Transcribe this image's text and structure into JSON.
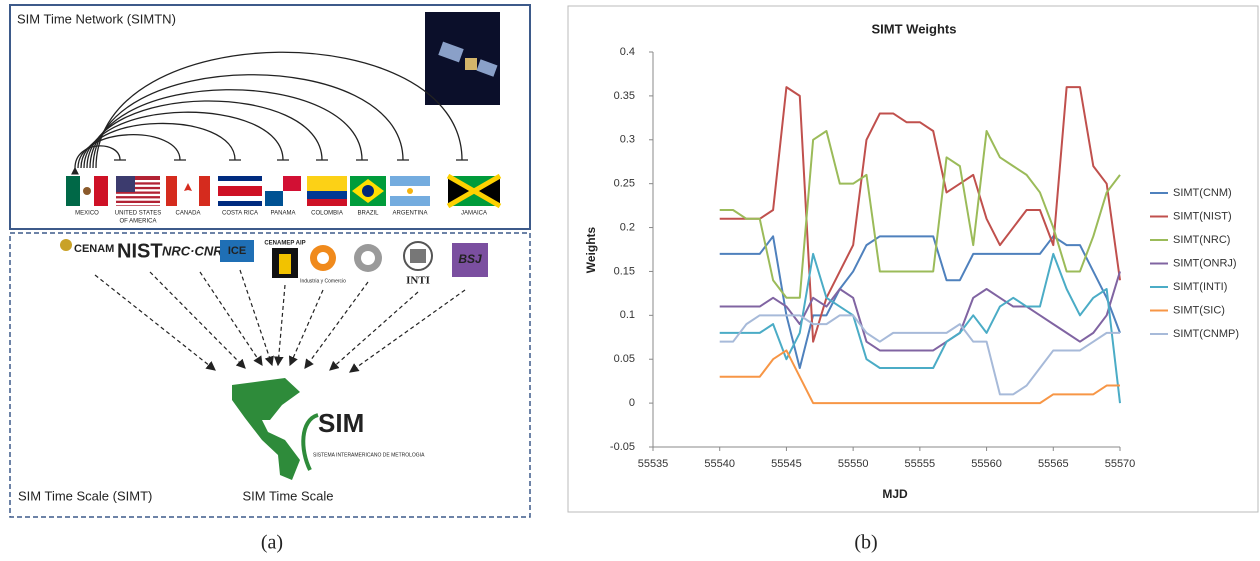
{
  "panel_a": {
    "title": "SIM Time Network (SIMTN)",
    "countries": [
      [
        "MEXICO"
      ],
      [
        "UNITED STATES",
        "OF AMERICA"
      ],
      [
        "CANADA"
      ],
      [
        "COSTA RICA"
      ],
      [
        "PANAMA"
      ],
      [
        "COLOMBIA"
      ],
      [
        "BRAZIL"
      ],
      [
        "ARGENTINA"
      ],
      [
        "JAMAICA"
      ]
    ],
    "institutes": [
      "CENAM",
      "NIST",
      "NRC·CNRC",
      "ICE",
      "CENAMEP AIP",
      "Industria y Comercio",
      "INTI",
      "BSJ"
    ],
    "sim_logo": {
      "name": "SIM",
      "subtitle": "SISTEMA INTERAMERICANO DE METROLOGIA"
    },
    "scale_label": "SIM Time Scale (SIMT)",
    "scale_caption": "SIM Time Scale"
  },
  "captions": [
    "(a)",
    "(b)"
  ],
  "chart_data": {
    "type": "line",
    "title": "SIMT Weights",
    "x_label": "MJD",
    "y_label": "Weights",
    "xlim": [
      55535,
      55570
    ],
    "xticks": [
      55535,
      55540,
      55545,
      55550,
      55555,
      55560,
      55565,
      55570
    ],
    "ylim": [
      -0.05,
      0.4
    ],
    "yticks": [
      -0.05,
      0,
      0.05,
      0.1,
      0.15,
      0.2,
      0.25,
      0.3,
      0.35,
      0.4
    ],
    "grid": false,
    "legend": "right",
    "x": [
      55540,
      55541,
      55542,
      55543,
      55544,
      55545,
      55546,
      55547,
      55548,
      55549,
      55550,
      55551,
      55552,
      55553,
      55554,
      55555,
      55556,
      55557,
      55558,
      55559,
      55560,
      55561,
      55562,
      55563,
      55564,
      55565,
      55566,
      55567,
      55568,
      55569,
      55570
    ],
    "series": [
      {
        "name": "SIMT(CNM)",
        "color": "#4f81bd",
        "values": [
          0.17,
          0.17,
          0.17,
          0.17,
          0.19,
          0.1,
          0.04,
          0.1,
          0.1,
          0.13,
          0.15,
          0.18,
          0.19,
          0.19,
          0.19,
          0.19,
          0.19,
          0.14,
          0.14,
          0.17,
          0.17,
          0.17,
          0.17,
          0.17,
          0.17,
          0.19,
          0.18,
          0.18,
          0.15,
          0.12,
          0.08
        ]
      },
      {
        "name": "SIMT(NIST)",
        "color": "#c0504d",
        "values": [
          0.21,
          0.21,
          0.21,
          0.21,
          0.22,
          0.36,
          0.35,
          0.07,
          0.12,
          0.15,
          0.18,
          0.3,
          0.33,
          0.33,
          0.32,
          0.32,
          0.31,
          0.24,
          0.25,
          0.26,
          0.21,
          0.18,
          0.2,
          0.22,
          0.22,
          0.18,
          0.36,
          0.36,
          0.27,
          0.25,
          0.14
        ]
      },
      {
        "name": "SIMT(NRC)",
        "color": "#9bbb59",
        "values": [
          0.22,
          0.22,
          0.21,
          0.21,
          0.14,
          0.12,
          0.12,
          0.3,
          0.31,
          0.25,
          0.25,
          0.26,
          0.15,
          0.15,
          0.15,
          0.15,
          0.15,
          0.28,
          0.27,
          0.18,
          0.31,
          0.28,
          0.27,
          0.26,
          0.24,
          0.2,
          0.15,
          0.15,
          0.19,
          0.24,
          0.26
        ]
      },
      {
        "name": "SIMT(ONRJ)",
        "color": "#8064a2",
        "values": [
          0.11,
          0.11,
          0.11,
          0.11,
          0.12,
          0.11,
          0.09,
          0.12,
          0.11,
          0.13,
          0.12,
          0.07,
          0.06,
          0.06,
          0.06,
          0.06,
          0.06,
          0.07,
          0.08,
          0.12,
          0.13,
          0.12,
          0.11,
          0.11,
          0.1,
          0.09,
          0.08,
          0.07,
          0.08,
          0.1,
          0.15
        ]
      },
      {
        "name": "SIMT(INTI)",
        "color": "#4bacc6",
        "values": [
          0.08,
          0.08,
          0.08,
          0.08,
          0.09,
          0.05,
          0.08,
          0.17,
          0.12,
          0.11,
          0.1,
          0.05,
          0.04,
          0.04,
          0.04,
          0.04,
          0.04,
          0.07,
          0.08,
          0.1,
          0.08,
          0.11,
          0.12,
          0.11,
          0.11,
          0.17,
          0.13,
          0.1,
          0.12,
          0.13,
          0
        ]
      },
      {
        "name": "SIMT(SIC)",
        "color": "#f79646",
        "values": [
          0.03,
          0.03,
          0.03,
          0.03,
          0.05,
          0.06,
          0.03,
          0,
          0,
          0,
          0,
          0,
          0,
          0,
          0,
          0,
          0,
          0,
          0,
          0,
          0,
          0,
          0,
          0,
          0,
          0.01,
          0.01,
          0.01,
          0.01,
          0.02,
          0.02
        ]
      },
      {
        "name": "SIMT(CNMP)",
        "color": "#a7bad9",
        "values": [
          0.07,
          0.07,
          0.09,
          0.1,
          0.1,
          0.1,
          0.1,
          0.09,
          0.09,
          0.1,
          0.1,
          0.08,
          0.07,
          0.08,
          0.08,
          0.08,
          0.08,
          0.08,
          0.09,
          0.07,
          0.07,
          0.01,
          0.01,
          0.02,
          0.04,
          0.06,
          0.06,
          0.06,
          0.07,
          0.08,
          0.08
        ]
      }
    ]
  }
}
